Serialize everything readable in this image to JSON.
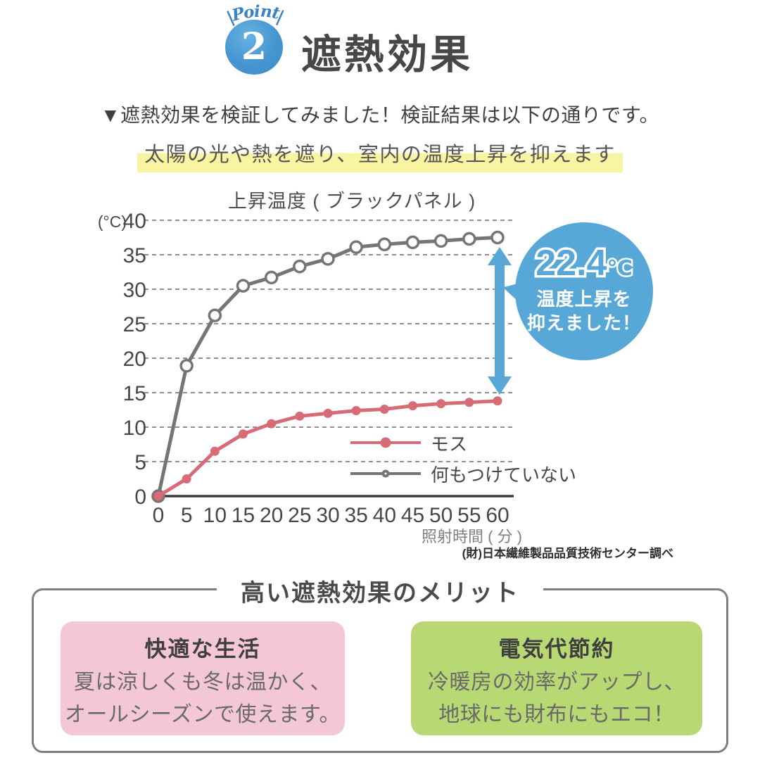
{
  "badge": {
    "label": "Point",
    "left_bar": "|",
    "right_bar": "|",
    "number": "2"
  },
  "header": {
    "title": "遮熱効果"
  },
  "intro": {
    "line1": "▼遮熱効果を検証してみました！検証結果は以下の通りです。",
    "highlight": "太陽の光や熱を遮り、室内の温度上昇を抑えます"
  },
  "chart_data": {
    "type": "line",
    "title": "上昇温度 ( ブラックパネル )",
    "y_unit": "(°C)",
    "xlabel": "照射時間 ( 分 )",
    "source": "(財)日本繊維製品品質技術センター調べ",
    "x": [
      0,
      5,
      10,
      15,
      20,
      25,
      30,
      35,
      40,
      45,
      50,
      55,
      60
    ],
    "ylim": [
      0,
      40
    ],
    "yticks": [
      0,
      5,
      10,
      15,
      20,
      25,
      30,
      35,
      40
    ],
    "grid": "dashed-horizontal",
    "legend_position": "inside-bottom-right",
    "series": [
      {
        "name": "モス",
        "color": "#d76b76",
        "marker": "filled",
        "values": [
          0,
          2.5,
          6.5,
          9.0,
          10.5,
          11.6,
          12.0,
          12.4,
          12.6,
          13.1,
          13.4,
          13.6,
          13.8
        ]
      },
      {
        "name": "何もつけていない",
        "color": "#757575",
        "marker": "open",
        "values": [
          0,
          18.9,
          26.2,
          30.5,
          31.7,
          33.3,
          34.4,
          36.1,
          36.5,
          36.8,
          37.0,
          37.3,
          37.5
        ]
      }
    ],
    "annotation": {
      "value": "22.4",
      "unit": "℃",
      "line1": "温度上昇を",
      "line2": "抑えました！",
      "color": "#57a8d7"
    }
  },
  "merits": {
    "title": "高い遮熱効果のメリット",
    "cards": [
      {
        "title": "快適な生活",
        "line1": "夏は涼しくも冬は温かく、",
        "line2": "オールシーズンで使えます。",
        "bg": "#f3c7d5"
      },
      {
        "title": "電気代節約",
        "line1": "冷暖房の効率がアップし、",
        "line2": "地球にも財布にもエコ！",
        "bg": "#b7d873"
      }
    ]
  },
  "colors": {
    "accent_blue": "#57a8d7",
    "badge_blue": "#4795d0",
    "point_text_blue": "#3b82c4",
    "highlight_yellow": "#f8f4a2",
    "series_red": "#d76b76",
    "series_gray": "#757575",
    "grid_gray": "#8f8f8f",
    "axis_dark": "#3a3a3a",
    "text_dark": "#3f3f3f"
  }
}
